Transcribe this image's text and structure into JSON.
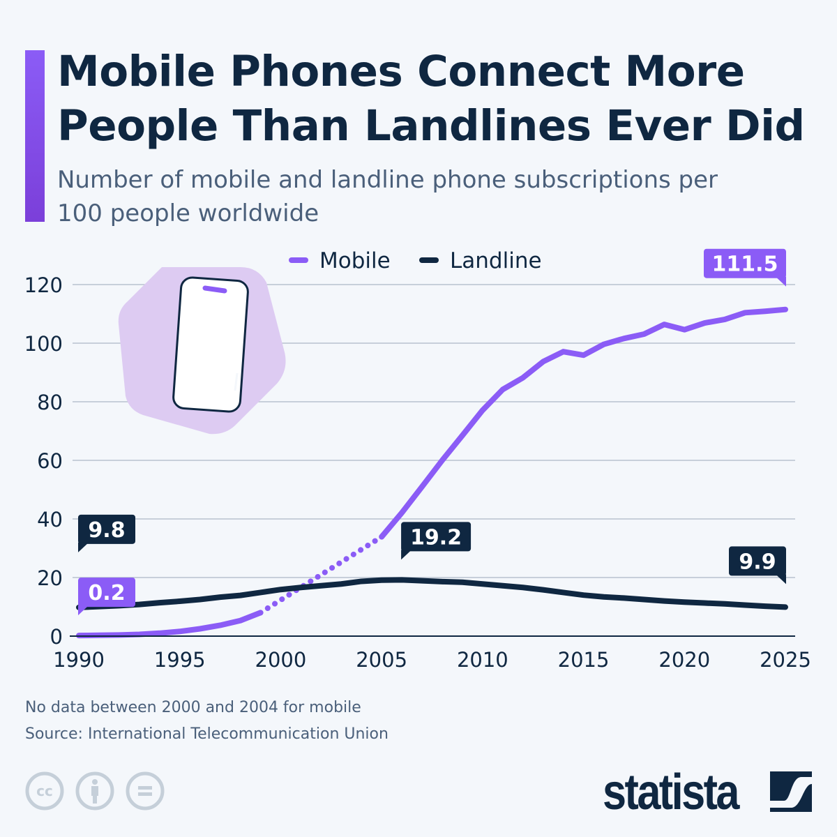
{
  "header": {
    "title": "Mobile Phones Connect More People Than Landlines Ever Did",
    "subtitle": "Number of mobile and landline phone subscriptions per 100 people worldwide"
  },
  "colors": {
    "mobile": "#8b5cf6",
    "landline": "#0f2741",
    "accent": "#8b5cf6",
    "illustration_bg": "#ddcbf2"
  },
  "illustration": "smartphone-icon",
  "chart_data": {
    "type": "line",
    "title": "",
    "xlabel": "",
    "ylabel": "",
    "xlim": [
      1990,
      2025
    ],
    "ylim": [
      0,
      120
    ],
    "grid": true,
    "legend_position": "top-center",
    "x_ticks": [
      "1990",
      "1995",
      "2000",
      "2005",
      "2010",
      "2015",
      "2020",
      "2025"
    ],
    "y_ticks": [
      "0",
      "20",
      "40",
      "60",
      "80",
      "100",
      "120"
    ],
    "x": [
      1990,
      1991,
      1992,
      1993,
      1994,
      1995,
      1996,
      1997,
      1998,
      1999,
      2000,
      2001,
      2002,
      2003,
      2004,
      2005,
      2006,
      2007,
      2008,
      2009,
      2010,
      2011,
      2012,
      2013,
      2014,
      2015,
      2016,
      2017,
      2018,
      2019,
      2020,
      2021,
      2022,
      2023,
      2024,
      2025
    ],
    "series": [
      {
        "name": "Mobile",
        "color": "#8b5cf6",
        "values": [
          0.2,
          0.3,
          0.4,
          0.6,
          1.0,
          1.6,
          2.5,
          3.7,
          5.3,
          8.0,
          null,
          null,
          null,
          null,
          null,
          33.9,
          42.1,
          51.0,
          60.0,
          68.5,
          77.1,
          84.2,
          88.2,
          93.7,
          97.1,
          95.9,
          99.6,
          101.6,
          103.1,
          106.4,
          104.6,
          106.9,
          108.1,
          110.4,
          110.9,
          111.5
        ]
      },
      {
        "name": "Landline",
        "color": "#0f2741",
        "values": [
          9.8,
          10.1,
          10.4,
          10.8,
          11.4,
          11.9,
          12.5,
          13.3,
          13.9,
          14.9,
          15.9,
          16.6,
          17.2,
          17.8,
          18.7,
          19.1,
          19.2,
          18.9,
          18.6,
          18.4,
          17.8,
          17.2,
          16.6,
          15.8,
          14.9,
          14.0,
          13.4,
          13.0,
          12.5,
          12.0,
          11.6,
          11.3,
          11.0,
          10.6,
          10.2,
          9.9
        ]
      }
    ],
    "data_labels": [
      {
        "series": "Landline",
        "x": 1990,
        "text": "9.8"
      },
      {
        "series": "Mobile",
        "x": 1990,
        "text": "0.2"
      },
      {
        "series": "Landline",
        "x": 2006,
        "text": "19.2"
      },
      {
        "series": "Mobile",
        "x": 2025,
        "text": "111.5"
      },
      {
        "series": "Landline",
        "x": 2025,
        "text": "9.9"
      }
    ]
  },
  "footer": {
    "note": "No data between 2000 and 2004 for mobile",
    "source": "Source: International Telecommunication Union",
    "license_icons": [
      "cc-icon",
      "attribution-icon",
      "no-derivatives-icon"
    ],
    "brand": "statista"
  }
}
